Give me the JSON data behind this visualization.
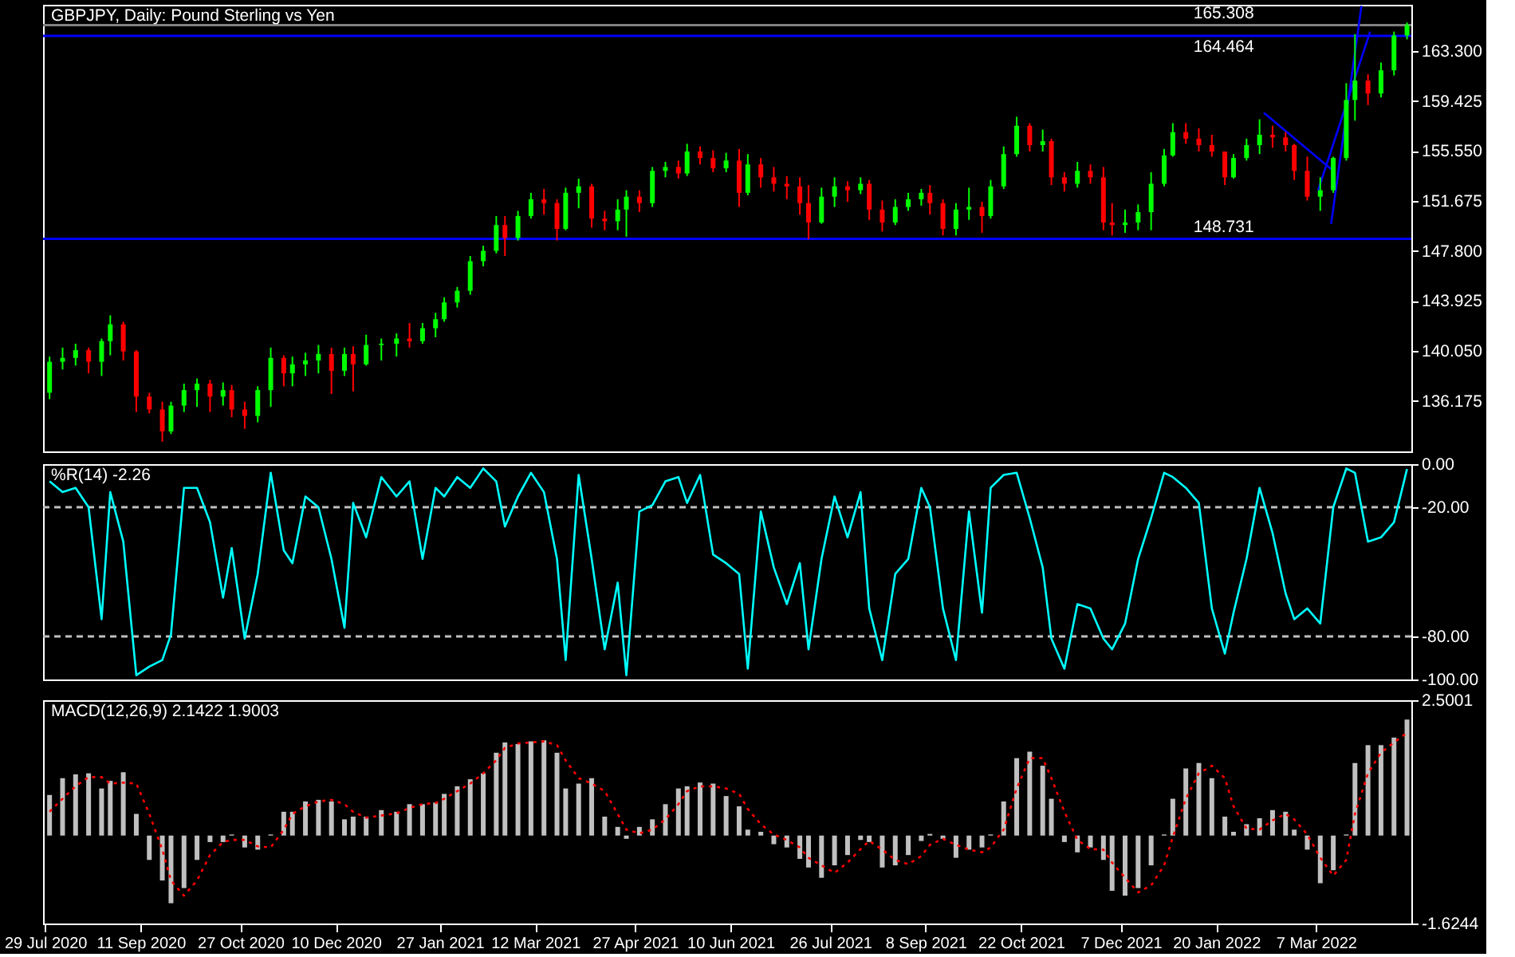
{
  "chart_data": [
    {
      "type": "candlestick",
      "title": "GBPJPY, Daily: Pound Sterling vs Yen",
      "x": [
        "2020-07-31",
        "2020-08-06",
        "2020-08-12",
        "2020-08-18",
        "2020-08-24",
        "2020-08-28",
        "2020-09-03",
        "2020-09-09",
        "2020-09-15",
        "2020-09-21",
        "2020-09-25",
        "2020-10-01",
        "2020-10-07",
        "2020-10-13",
        "2020-10-19",
        "2020-10-23",
        "2020-10-29",
        "2020-11-04",
        "2020-11-10",
        "2020-11-16",
        "2020-11-20",
        "2020-11-26",
        "2020-12-02",
        "2020-12-08",
        "2020-12-14",
        "2020-12-18",
        "2020-12-24",
        "2020-12-31",
        "2021-01-07",
        "2021-01-13",
        "2021-01-19",
        "2021-01-25",
        "2021-01-29",
        "2021-02-04",
        "2021-02-10",
        "2021-02-16",
        "2021-02-22",
        "2021-02-26",
        "2021-03-04",
        "2021-03-10",
        "2021-03-16",
        "2021-03-22",
        "2021-03-26",
        "2021-04-01",
        "2021-04-07",
        "2021-04-13",
        "2021-04-19",
        "2021-04-23",
        "2021-04-29",
        "2021-05-05",
        "2021-05-11",
        "2021-05-17",
        "2021-05-21",
        "2021-05-27",
        "2021-06-02",
        "2021-06-08",
        "2021-06-14",
        "2021-06-18",
        "2021-06-24",
        "2021-06-30",
        "2021-07-06",
        "2021-07-12",
        "2021-07-16",
        "2021-07-22",
        "2021-07-28",
        "2021-08-03",
        "2021-08-09",
        "2021-08-13",
        "2021-08-19",
        "2021-08-25",
        "2021-08-31",
        "2021-09-06",
        "2021-09-10",
        "2021-09-16",
        "2021-09-22",
        "2021-09-28",
        "2021-10-04",
        "2021-10-08",
        "2021-10-14",
        "2021-10-20",
        "2021-10-26",
        "2021-11-01",
        "2021-11-05",
        "2021-11-11",
        "2021-11-17",
        "2021-11-23",
        "2021-11-29",
        "2021-12-03",
        "2021-12-09",
        "2021-12-15",
        "2021-12-21",
        "2021-12-27",
        "2021-12-31",
        "2022-01-06",
        "2022-01-12",
        "2022-01-18",
        "2022-01-24",
        "2022-01-28",
        "2022-02-03",
        "2022-02-09",
        "2022-02-15",
        "2022-02-21",
        "2022-02-25",
        "2022-03-03",
        "2022-03-09",
        "2022-03-15",
        "2022-03-21",
        "2022-03-25",
        "2022-03-31",
        "2022-04-06",
        "2022-04-12",
        "2022-04-18"
      ],
      "ohlc": [
        [
          136.8,
          139.6,
          136.3,
          139.2
        ],
        [
          139.2,
          140.3,
          138.6,
          139.5
        ],
        [
          139.5,
          140.6,
          138.9,
          140.1
        ],
        [
          140.1,
          140.3,
          138.3,
          139.2
        ],
        [
          139.2,
          141.0,
          138.1,
          140.8
        ],
        [
          140.8,
          142.8,
          139.7,
          142.1
        ],
        [
          142.1,
          142.3,
          139.3,
          140.0
        ],
        [
          140.0,
          140.1,
          135.3,
          136.5
        ],
        [
          136.5,
          136.8,
          135.2,
          135.5
        ],
        [
          135.5,
          136.1,
          133.0,
          133.8
        ],
        [
          133.8,
          136.1,
          133.6,
          135.8
        ],
        [
          135.8,
          137.5,
          135.3,
          137.0
        ],
        [
          137.0,
          137.9,
          135.7,
          137.5
        ],
        [
          137.5,
          137.8,
          135.3,
          136.5
        ],
        [
          136.5,
          137.6,
          135.8,
          137.0
        ],
        [
          137.0,
          137.4,
          134.9,
          135.5
        ],
        [
          135.5,
          136.1,
          134.0,
          135.0
        ],
        [
          135.0,
          137.3,
          134.5,
          137.0
        ],
        [
          137.0,
          140.3,
          135.7,
          139.5
        ],
        [
          139.5,
          139.7,
          137.3,
          138.3
        ],
        [
          138.3,
          139.6,
          137.3,
          139.0
        ],
        [
          139.0,
          139.9,
          138.1,
          139.3
        ],
        [
          139.3,
          140.5,
          138.3,
          139.8
        ],
        [
          139.8,
          140.3,
          136.7,
          138.5
        ],
        [
          138.5,
          140.3,
          138.1,
          139.8
        ],
        [
          139.8,
          140.4,
          136.9,
          139.0
        ],
        [
          139.0,
          141.3,
          138.9,
          140.5
        ],
        [
          140.5,
          141.0,
          139.3,
          140.6
        ],
        [
          140.6,
          141.4,
          139.6,
          141.0
        ],
        [
          141.0,
          142.2,
          140.3,
          140.8
        ],
        [
          140.8,
          142.2,
          140.6,
          141.8
        ],
        [
          141.8,
          143.0,
          141.1,
          142.5
        ],
        [
          142.5,
          144.2,
          142.3,
          143.8
        ],
        [
          143.8,
          145.0,
          143.4,
          144.7
        ],
        [
          144.7,
          147.4,
          144.4,
          147.0
        ],
        [
          147.0,
          148.2,
          146.6,
          147.8
        ],
        [
          147.8,
          150.5,
          147.6,
          149.8
        ],
        [
          149.8,
          150.5,
          147.4,
          148.8
        ],
        [
          148.8,
          150.9,
          148.6,
          150.5
        ],
        [
          150.5,
          152.3,
          150.3,
          151.8
        ],
        [
          151.8,
          152.6,
          150.6,
          151.5
        ],
        [
          151.5,
          151.8,
          148.6,
          149.5
        ],
        [
          149.5,
          152.7,
          149.4,
          152.3
        ],
        [
          152.3,
          153.4,
          151.1,
          152.8
        ],
        [
          152.8,
          153.0,
          149.6,
          150.3
        ],
        [
          150.3,
          150.9,
          149.4,
          150.1
        ],
        [
          150.1,
          151.8,
          149.4,
          151.0
        ],
        [
          151.0,
          152.5,
          148.9,
          152.0
        ],
        [
          152.0,
          152.5,
          150.8,
          151.5
        ],
        [
          151.5,
          154.3,
          151.2,
          154.0
        ],
        [
          154.0,
          154.7,
          153.5,
          154.3
        ],
        [
          154.3,
          154.8,
          153.4,
          153.8
        ],
        [
          153.8,
          156.1,
          153.6,
          155.5
        ],
        [
          155.5,
          155.9,
          154.5,
          155.0
        ],
        [
          155.0,
          155.6,
          153.9,
          154.2
        ],
        [
          154.2,
          155.4,
          153.9,
          154.8
        ],
        [
          154.8,
          155.7,
          151.2,
          152.3
        ],
        [
          152.3,
          155.3,
          152.1,
          154.5
        ],
        [
          154.5,
          155.0,
          152.7,
          153.5
        ],
        [
          153.5,
          154.3,
          152.4,
          153.0
        ],
        [
          153.0,
          153.6,
          151.8,
          152.8
        ],
        [
          152.8,
          153.5,
          150.6,
          151.5
        ],
        [
          151.5,
          152.9,
          148.7,
          150.0
        ],
        [
          150.0,
          152.7,
          149.9,
          152.0
        ],
        [
          152.0,
          153.5,
          151.2,
          152.8
        ],
        [
          152.8,
          153.2,
          151.6,
          152.5
        ],
        [
          152.5,
          153.5,
          152.2,
          153.0
        ],
        [
          153.0,
          153.3,
          150.2,
          151.0
        ],
        [
          151.0,
          151.7,
          149.3,
          150.0
        ],
        [
          150.0,
          151.8,
          149.8,
          151.2
        ],
        [
          151.2,
          152.3,
          150.9,
          151.8
        ],
        [
          151.8,
          152.6,
          151.3,
          152.3
        ],
        [
          152.3,
          152.9,
          150.6,
          151.5
        ],
        [
          151.5,
          151.8,
          149.0,
          149.5
        ],
        [
          149.5,
          151.5,
          149.0,
          151.0
        ],
        [
          151.0,
          152.7,
          150.2,
          151.2
        ],
        [
          151.2,
          151.6,
          149.2,
          150.5
        ],
        [
          150.5,
          153.3,
          150.3,
          152.8
        ],
        [
          152.8,
          155.9,
          152.6,
          155.3
        ],
        [
          155.3,
          158.2,
          155.1,
          157.5
        ],
        [
          157.5,
          157.7,
          155.5,
          156.0
        ],
        [
          156.0,
          157.2,
          155.5,
          156.3
        ],
        [
          156.3,
          156.5,
          152.9,
          153.5
        ],
        [
          153.5,
          153.9,
          152.4,
          153.0
        ],
        [
          153.0,
          154.7,
          152.7,
          154.0
        ],
        [
          154.0,
          154.5,
          153.0,
          153.5
        ],
        [
          153.5,
          154.3,
          149.4,
          150.0
        ],
        [
          150.0,
          151.5,
          149.0,
          149.8
        ],
        [
          149.8,
          151.0,
          149.2,
          150.0
        ],
        [
          150.0,
          151.4,
          149.4,
          150.8
        ],
        [
          150.8,
          153.9,
          149.4,
          153.0
        ],
        [
          153.0,
          155.7,
          152.8,
          155.2
        ],
        [
          155.2,
          157.7,
          155.1,
          157.0
        ],
        [
          157.0,
          157.7,
          156.1,
          156.5
        ],
        [
          156.5,
          157.3,
          155.5,
          156.0
        ],
        [
          156.0,
          156.8,
          155.1,
          155.5
        ],
        [
          155.5,
          155.5,
          152.9,
          153.5
        ],
        [
          153.5,
          155.3,
          153.4,
          155.0
        ],
        [
          155.0,
          156.5,
          154.8,
          156.0
        ],
        [
          156.0,
          158.0,
          155.3,
          156.8
        ],
        [
          156.8,
          157.5,
          155.8,
          156.6
        ],
        [
          156.6,
          157.0,
          155.5,
          156.0
        ],
        [
          156.0,
          156.1,
          153.3,
          154.0
        ],
        [
          154.0,
          155.1,
          151.7,
          152.0
        ],
        [
          152.0,
          153.5,
          150.9,
          152.5
        ],
        [
          152.5,
          155.1,
          152.3,
          155.0
        ],
        [
          155.0,
          160.8,
          154.8,
          159.5
        ],
        [
          159.5,
          164.6,
          157.9,
          161.0
        ],
        [
          161.0,
          161.5,
          159.1,
          160.0
        ],
        [
          160.0,
          162.4,
          159.7,
          161.8
        ],
        [
          161.8,
          164.8,
          161.4,
          164.5
        ],
        [
          164.5,
          165.5,
          164.2,
          165.308
        ]
      ],
      "colors": [
        "#00ff00",
        "#00ff00",
        "#00ff00",
        "#ff0000",
        "#00ff00",
        "#00ff00",
        "#ff0000",
        "#ff0000",
        "#ff0000",
        "#ff0000",
        "#00ff00",
        "#00ff00",
        "#00ff00",
        "#ff0000",
        "#00ff00",
        "#ff0000",
        "#ff0000",
        "#00ff00",
        "#00ff00",
        "#ff0000",
        "#00ff00",
        "#00ff00",
        "#00ff00",
        "#ff0000",
        "#00ff00",
        "#ff0000",
        "#00ff00",
        "#00ff00",
        "#00ff00",
        "#ff0000",
        "#00ff00",
        "#00ff00",
        "#00ff00",
        "#00ff00",
        "#00ff00",
        "#00ff00",
        "#00ff00",
        "#ff0000",
        "#00ff00",
        "#00ff00",
        "#ff0000",
        "#ff0000",
        "#00ff00",
        "#00ff00",
        "#ff0000",
        "#ff0000",
        "#00ff00",
        "#00ff00",
        "#ff0000",
        "#00ff00",
        "#00ff00",
        "#ff0000",
        "#00ff00",
        "#ff0000",
        "#ff0000",
        "#00ff00",
        "#ff0000",
        "#00ff00",
        "#ff0000",
        "#ff0000",
        "#ff0000",
        "#ff0000",
        "#ff0000",
        "#00ff00",
        "#00ff00",
        "#ff0000",
        "#00ff00",
        "#ff0000",
        "#ff0000",
        "#00ff00",
        "#00ff00",
        "#00ff00",
        "#ff0000",
        "#ff0000",
        "#00ff00",
        "#00ff00",
        "#ff0000",
        "#00ff00",
        "#00ff00",
        "#00ff00",
        "#ff0000",
        "#00ff00",
        "#ff0000",
        "#ff0000",
        "#00ff00",
        "#ff0000",
        "#ff0000",
        "#ff0000",
        "#00ff00",
        "#00ff00",
        "#00ff00",
        "#00ff00",
        "#00ff00",
        "#ff0000",
        "#ff0000",
        "#ff0000",
        "#ff0000",
        "#00ff00",
        "#00ff00",
        "#00ff00",
        "#ff0000",
        "#ff0000",
        "#ff0000",
        "#ff0000",
        "#00ff00",
        "#00ff00",
        "#00ff00",
        "#00ff00",
        "#ff0000",
        "#00ff00",
        "#00ff00",
        "#00ff00"
      ],
      "series": [
        {
          "type": "line",
          "x": [
            "2022-02-11",
            "2022-03-15"
          ],
          "values": [
            158.5,
            154.0
          ],
          "color": "#0000ff"
        },
        {
          "type": "line",
          "x": [
            "2022-03-14",
            "2022-03-28"
          ],
          "values": [
            149.9,
            166.8
          ],
          "color": "#0000ff"
        },
        {
          "type": "line",
          "x": [
            "2022-03-08",
            "2022-04-01"
          ],
          "values": [
            152.5,
            164.8
          ],
          "color": "#0000ff"
        }
      ],
      "xlim": [
        "2020-07-28",
        "2022-04-20"
      ],
      "ylim": [
        132.25,
        166.88
      ],
      "yticks": [
        136.175,
        {
          "value": 140.05,
          "label": "140.050"
        },
        143.925,
        {
          "value": 147.8,
          "label": "147.800"
        },
        151.675,
        {
          "value": 155.55,
          "label": "155.550"
        },
        159.425,
        {
          "value": 163.3,
          "label": "163.300"
        }
      ],
      "tick_labels": "y",
      "ref_lines": [
        {
          "axis": "y",
          "value": 165.308,
          "label": "165.308",
          "color": "#808080"
        },
        {
          "axis": "y",
          "value": 164.464,
          "label": "164.464",
          "color": "#0000ff"
        },
        {
          "axis": "y",
          "value": 148.731,
          "label": "148.731",
          "color": "#0000ff"
        }
      ]
    },
    {
      "type": "line",
      "title": "%R(14) -2.26",
      "x": [
        "2020-07-31",
        "2020-08-06",
        "2020-08-12",
        "2020-08-18",
        "2020-08-24",
        "2020-08-28",
        "2020-09-03",
        "2020-09-09",
        "2020-09-15",
        "2020-09-21",
        "2020-09-25",
        "2020-10-01",
        "2020-10-07",
        "2020-10-13",
        "2020-10-19",
        "2020-10-23",
        "2020-10-29",
        "2020-11-04",
        "2020-11-10",
        "2020-11-16",
        "2020-11-20",
        "2020-11-26",
        "2020-12-02",
        "2020-12-08",
        "2020-12-14",
        "2020-12-18",
        "2020-12-24",
        "2020-12-31",
        "2021-01-07",
        "2021-01-13",
        "2021-01-19",
        "2021-01-25",
        "2021-01-29",
        "2021-02-04",
        "2021-02-10",
        "2021-02-16",
        "2021-02-22",
        "2021-02-26",
        "2021-03-04",
        "2021-03-10",
        "2021-03-16",
        "2021-03-22",
        "2021-03-26",
        "2021-04-01",
        "2021-04-07",
        "2021-04-13",
        "2021-04-19",
        "2021-04-23",
        "2021-04-29",
        "2021-05-05",
        "2021-05-11",
        "2021-05-17",
        "2021-05-21",
        "2021-05-27",
        "2021-06-02",
        "2021-06-08",
        "2021-06-14",
        "2021-06-18",
        "2021-06-24",
        "2021-06-30",
        "2021-07-06",
        "2021-07-12",
        "2021-07-16",
        "2021-07-22",
        "2021-07-28",
        "2021-08-03",
        "2021-08-09",
        "2021-08-13",
        "2021-08-19",
        "2021-08-25",
        "2021-08-31",
        "2021-09-06",
        "2021-09-10",
        "2021-09-16",
        "2021-09-22",
        "2021-09-28",
        "2021-10-04",
        "2021-10-08",
        "2021-10-14",
        "2021-10-20",
        "2021-10-26",
        "2021-11-01",
        "2021-11-05",
        "2021-11-11",
        "2021-11-17",
        "2021-11-23",
        "2021-11-29",
        "2021-12-03",
        "2021-12-09",
        "2021-12-15",
        "2021-12-21",
        "2021-12-27",
        "2021-12-31",
        "2022-01-06",
        "2022-01-12",
        "2022-01-18",
        "2022-01-24",
        "2022-01-28",
        "2022-02-03",
        "2022-02-09",
        "2022-02-15",
        "2022-02-21",
        "2022-02-25",
        "2022-03-03",
        "2022-03-09",
        "2022-03-15",
        "2022-03-21",
        "2022-03-25",
        "2022-03-31",
        "2022-04-06",
        "2022-04-12",
        "2022-04-18"
      ],
      "series": [
        {
          "color": "#00ffff",
          "values": [
            -8,
            -13,
            -11,
            -20,
            -72,
            -13,
            -36,
            -98,
            -94,
            -91,
            -79,
            -11,
            -11,
            -27,
            -62,
            -39,
            -81,
            -51,
            -4,
            -40,
            -46,
            -15,
            -20,
            -44,
            -76,
            -18,
            -34,
            -6,
            -15,
            -8,
            -44,
            -11,
            -15,
            -6,
            -11,
            -2,
            -8,
            -29,
            -15,
            -4,
            -13,
            -44,
            -91,
            -5,
            -44,
            -86,
            -55,
            -98,
            -22,
            -19,
            -8,
            -6,
            -18,
            -5,
            -42,
            -46,
            -51,
            -95,
            -22,
            -48,
            -65,
            -46,
            -86,
            -44,
            -15,
            -34,
            -13,
            -67,
            -91,
            -51,
            -44,
            -11,
            -20,
            -67,
            -91,
            -22,
            -69,
            -11,
            -5,
            -4,
            -25,
            -48,
            -81,
            -95,
            -65,
            -67,
            -81,
            -86,
            -74,
            -44,
            -25,
            -4,
            -6,
            -11,
            -18,
            -67,
            -88,
            -69,
            -44,
            -11,
            -32,
            -60,
            -72,
            -67,
            -74,
            -20,
            -2,
            -4,
            -36,
            -34,
            -27,
            -2.26
          ]
        }
      ],
      "xlim": [
        "2020-07-28",
        "2022-04-20"
      ],
      "ylim": [
        -100,
        0
      ],
      "yticks": [
        {
          "value": 0,
          "label": "0.00"
        },
        {
          "value": -20,
          "label": "-20.00"
        },
        {
          "value": -80,
          "label": "-80.00"
        },
        {
          "value": -100,
          "label": "-100.00"
        }
      ],
      "tick_labels": "y",
      "ref_lines": [
        {
          "axis": "y",
          "value": -20,
          "color": "#c0c0c0",
          "line_style": "dashed"
        },
        {
          "axis": "y",
          "value": -80,
          "color": "#c0c0c0",
          "line_style": "dashed"
        }
      ]
    },
    {
      "type": "bar",
      "title": "MACD(12,26,9) 2.1422 1.9003",
      "x": [
        "2020-07-31",
        "2020-08-06",
        "2020-08-12",
        "2020-08-18",
        "2020-08-24",
        "2020-08-28",
        "2020-09-03",
        "2020-09-09",
        "2020-09-15",
        "2020-09-21",
        "2020-09-25",
        "2020-10-01",
        "2020-10-07",
        "2020-10-13",
        "2020-10-19",
        "2020-10-23",
        "2020-10-29",
        "2020-11-04",
        "2020-11-10",
        "2020-11-16",
        "2020-11-20",
        "2020-11-26",
        "2020-12-02",
        "2020-12-08",
        "2020-12-14",
        "2020-12-18",
        "2020-12-24",
        "2020-12-31",
        "2021-01-07",
        "2021-01-13",
        "2021-01-19",
        "2021-01-25",
        "2021-01-29",
        "2021-02-04",
        "2021-02-10",
        "2021-02-16",
        "2021-02-22",
        "2021-02-26",
        "2021-03-04",
        "2021-03-10",
        "2021-03-16",
        "2021-03-22",
        "2021-03-26",
        "2021-04-01",
        "2021-04-07",
        "2021-04-13",
        "2021-04-19",
        "2021-04-23",
        "2021-04-29",
        "2021-05-05",
        "2021-05-11",
        "2021-05-17",
        "2021-05-21",
        "2021-05-27",
        "2021-06-02",
        "2021-06-08",
        "2021-06-14",
        "2021-06-18",
        "2021-06-24",
        "2021-06-30",
        "2021-07-06",
        "2021-07-12",
        "2021-07-16",
        "2021-07-22",
        "2021-07-28",
        "2021-08-03",
        "2021-08-09",
        "2021-08-13",
        "2021-08-19",
        "2021-08-25",
        "2021-08-31",
        "2021-09-06",
        "2021-09-10",
        "2021-09-16",
        "2021-09-22",
        "2021-09-28",
        "2021-10-04",
        "2021-10-08",
        "2021-10-14",
        "2021-10-20",
        "2021-10-26",
        "2021-11-01",
        "2021-11-05",
        "2021-11-11",
        "2021-11-17",
        "2021-11-23",
        "2021-11-29",
        "2021-12-03",
        "2021-12-09",
        "2021-12-15",
        "2021-12-21",
        "2021-12-27",
        "2021-12-31",
        "2022-01-06",
        "2022-01-12",
        "2022-01-18",
        "2022-01-24",
        "2022-01-28",
        "2022-02-03",
        "2022-02-09",
        "2022-02-15",
        "2022-02-21",
        "2022-02-25",
        "2022-03-03",
        "2022-03-09",
        "2022-03-15",
        "2022-03-21",
        "2022-03-25",
        "2022-03-31",
        "2022-04-06",
        "2022-04-12",
        "2022-04-18"
      ],
      "series": [
        {
          "type": "bar",
          "color": "#c0c0c0",
          "values": [
            0.75,
            1.06,
            1.13,
            1.15,
            0.87,
            1.01,
            1.17,
            0.4,
            -0.45,
            -0.83,
            -1.25,
            -0.97,
            -0.45,
            -0.12,
            -0.12,
            0.02,
            -0.22,
            -0.26,
            0.02,
            0.44,
            0.44,
            0.63,
            0.66,
            0.63,
            0.3,
            0.35,
            0.35,
            0.47,
            0.44,
            0.58,
            0.58,
            0.61,
            0.77,
            0.91,
            1.04,
            1.15,
            1.53,
            1.72,
            1.69,
            1.74,
            1.76,
            1.53,
            0.87,
            0.96,
            1.06,
            0.35,
            0.16,
            -0.06,
            0.16,
            0.3,
            0.58,
            0.87,
            0.91,
            0.98,
            0.96,
            0.73,
            0.54,
            0.11,
            0.07,
            -0.16,
            -0.22,
            -0.43,
            -0.59,
            -0.78,
            -0.55,
            -0.36,
            -0.08,
            -0.12,
            -0.59,
            -0.55,
            -0.36,
            -0.1,
            0.03,
            -0.06,
            -0.41,
            -0.26,
            -0.22,
            0.02,
            0.63,
            1.43,
            1.55,
            1.29,
            0.68,
            -0.12,
            -0.31,
            -0.22,
            -0.45,
            -1.02,
            -1.11,
            -0.97,
            -0.55,
            0.02,
            0.68,
            1.24,
            1.34,
            1.06,
            0.35,
            0.07,
            0.21,
            0.32,
            0.47,
            0.44,
            0.11,
            -0.26,
            -0.88,
            -0.64,
            0.02,
            1.34,
            1.67,
            1.67,
            1.81,
            2.1422
          ]
        },
        {
          "type": "line",
          "color": "#ff0000",
          "line_style": "dotted",
          "values": [
            0.44,
            0.68,
            0.91,
            1.08,
            1.08,
            0.96,
            0.98,
            0.96,
            0.4,
            -0.26,
            -0.83,
            -1.11,
            -0.83,
            -0.36,
            -0.12,
            -0.08,
            -0.08,
            -0.2,
            -0.22,
            0.11,
            0.4,
            0.54,
            0.63,
            0.66,
            0.58,
            0.44,
            0.33,
            0.37,
            0.41,
            0.51,
            0.58,
            0.6,
            0.68,
            0.82,
            0.96,
            1.15,
            1.39,
            1.62,
            1.7,
            1.72,
            1.74,
            1.67,
            1.39,
            1.06,
            0.96,
            0.82,
            0.4,
            0.11,
            0.04,
            0.11,
            0.3,
            0.58,
            0.82,
            0.91,
            0.91,
            0.87,
            0.77,
            0.49,
            0.21,
            0.02,
            -0.08,
            -0.22,
            -0.41,
            -0.55,
            -0.69,
            -0.5,
            -0.25,
            -0.1,
            -0.26,
            -0.45,
            -0.53,
            -0.38,
            -0.17,
            -0.06,
            -0.17,
            -0.26,
            -0.31,
            -0.22,
            0.11,
            0.87,
            1.43,
            1.43,
            1.06,
            0.44,
            -0.08,
            -0.25,
            -0.26,
            -0.5,
            -0.78,
            -1.05,
            -0.92,
            -0.55,
            -0.03,
            0.68,
            1.15,
            1.29,
            1.06,
            0.54,
            0.13,
            0.11,
            0.28,
            0.4,
            0.3,
            0.02,
            -0.41,
            -0.74,
            -0.45,
            0.4,
            1.15,
            1.53,
            1.72,
            1.9003
          ]
        }
      ],
      "xlim": [
        "2020-07-28",
        "2022-04-20"
      ],
      "xticks": [
        {
          "value": "2020-07-29",
          "label": "29 Jul 2020"
        },
        {
          "value": "2020-09-11",
          "label": "11 Sep 2020"
        },
        {
          "value": "2020-10-27",
          "label": "27 Oct 2020"
        },
        {
          "value": "2020-12-10",
          "label": "10 Dec 2020"
        },
        {
          "value": "2021-01-27",
          "label": "27 Jan 2021"
        },
        {
          "value": "2021-03-12",
          "label": "12 Mar 2021"
        },
        {
          "value": "2021-04-27",
          "label": "27 Apr 2021"
        },
        {
          "value": "2021-06-10",
          "label": "10 Jun 2021"
        },
        {
          "value": "2021-07-26",
          "label": "26 Jul 2021"
        },
        {
          "value": "2021-09-08",
          "label": "8 Sep 2021"
        },
        {
          "value": "2021-10-22",
          "label": "22 Oct 2021"
        },
        {
          "value": "2021-12-07",
          "label": "7 Dec 2021"
        },
        {
          "value": "2022-01-20",
          "label": "20 Jan 2022"
        },
        {
          "value": "2022-03-07",
          "label": "7 Mar 2022"
        }
      ],
      "ylim": [
        -1.6244,
        2.5001
      ],
      "yticks": [
        2.5001,
        -1.6244
      ]
    }
  ]
}
